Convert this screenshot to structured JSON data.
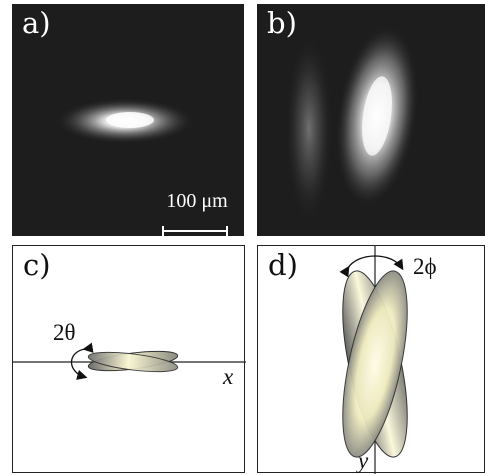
{
  "figure": {
    "panels": {
      "a": {
        "label": "a)",
        "scale_bar_text": "100 μm"
      },
      "b": {
        "label": "b)"
      },
      "c": {
        "label": "c)",
        "angle_label": "2θ",
        "axis_label": "x"
      },
      "d": {
        "label": "d)",
        "angle_label": "2ϕ",
        "axis_label": "y"
      }
    }
  }
}
